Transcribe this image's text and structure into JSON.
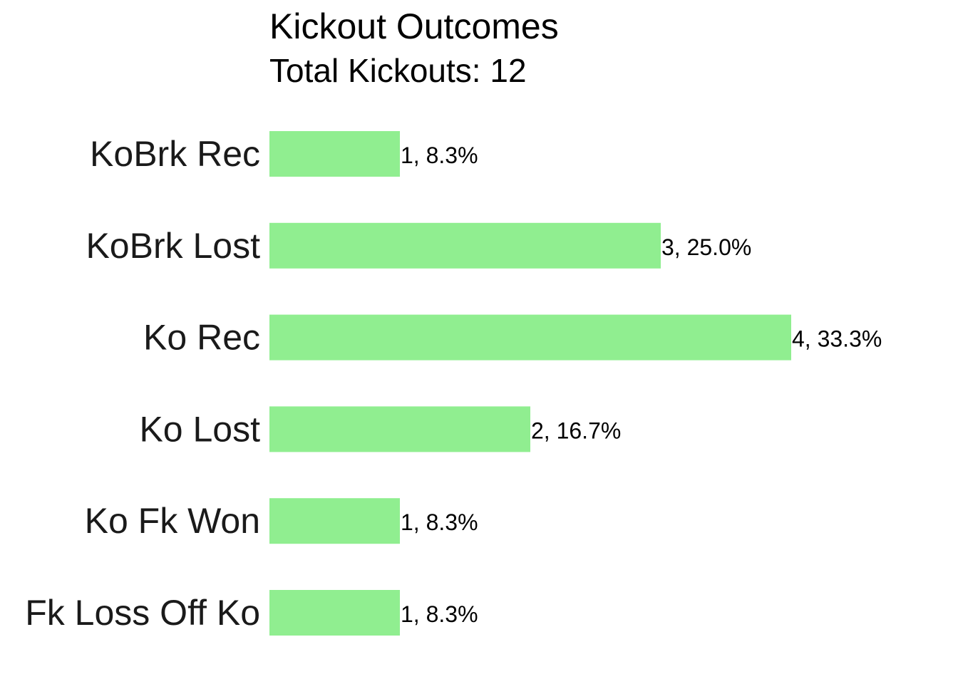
{
  "chart_data": {
    "type": "bar",
    "orientation": "horizontal",
    "title": "Kickout Outcomes",
    "subtitle": "Total Kickouts: 12",
    "categories": [
      "KoBrk Rec",
      "KoBrk Lost",
      "Ko Rec",
      "Ko Lost",
      "Ko Fk Won",
      "Fk Loss Off Ko"
    ],
    "values": [
      1,
      3,
      4,
      2,
      1,
      1
    ],
    "data_labels": [
      "1, 8.3%",
      "3, 25.0%",
      "4, 33.3%",
      "2, 16.7%",
      "1, 8.3%",
      "1, 8.3%"
    ],
    "xlim": [
      0,
      4
    ],
    "grid": false,
    "bar_color": "#90EE90"
  }
}
